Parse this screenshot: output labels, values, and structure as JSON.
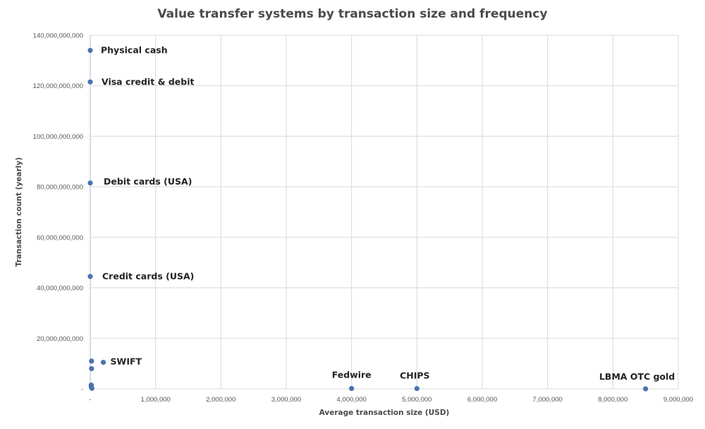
{
  "chart_data": {
    "type": "scatter",
    "title": "Value transfer systems by transaction size and frequency",
    "xlabel": "Average transaction size (USD)",
    "ylabel": "Transaction count (yearly)",
    "xlim": [
      0,
      9000000
    ],
    "ylim": [
      0,
      140000000000
    ],
    "x_ticks": [
      0,
      1000000,
      2000000,
      3000000,
      4000000,
      5000000,
      6000000,
      7000000,
      8000000,
      9000000
    ],
    "x_tick_labels": [
      "-",
      "1,000,000",
      "2,000,000",
      "3,000,000",
      "4,000,000",
      "5,000,000",
      "6,000,000",
      "7,000,000",
      "8,000,000",
      "9,000,000"
    ],
    "y_ticks": [
      0,
      20000000000,
      40000000000,
      60000000000,
      80000000000,
      100000000000,
      120000000000,
      140000000000
    ],
    "y_tick_labels": [
      "-",
      "20,000,000,000",
      "40,000,000,000",
      "60,000,000,000",
      "80,000,000,000",
      "100,000,000,000",
      "120,000,000,000",
      "140,000,000,000"
    ],
    "grid": true,
    "marker_color": "#4a72b0",
    "points": [
      {
        "label": "Physical cash",
        "x": 30,
        "y": 134000000000
      },
      {
        "label": "Visa credit & debit",
        "x": 60,
        "y": 121500000000
      },
      {
        "label": "Debit cards (USA)",
        "x": 40,
        "y": 81500000000
      },
      {
        "label": "Credit cards (USA)",
        "x": 90,
        "y": 44500000000
      },
      {
        "label": "SWIFT",
        "x": 200000,
        "y": 10500000000
      },
      {
        "label": "",
        "x": 20000,
        "y": 11000000000
      },
      {
        "label": "",
        "x": 20000,
        "y": 8000000000
      },
      {
        "label": "",
        "x": 15000,
        "y": 1500000000
      },
      {
        "label": "",
        "x": 15000,
        "y": 800000000
      },
      {
        "label": "",
        "x": 25000,
        "y": 200000000
      },
      {
        "label": "Fedwire",
        "x": 4000000,
        "y": 150000000
      },
      {
        "label": "CHIPS",
        "x": 5000000,
        "y": 120000000
      },
      {
        "label": "LBMA OTC gold",
        "x": 8500000,
        "y": 10000000
      }
    ]
  }
}
